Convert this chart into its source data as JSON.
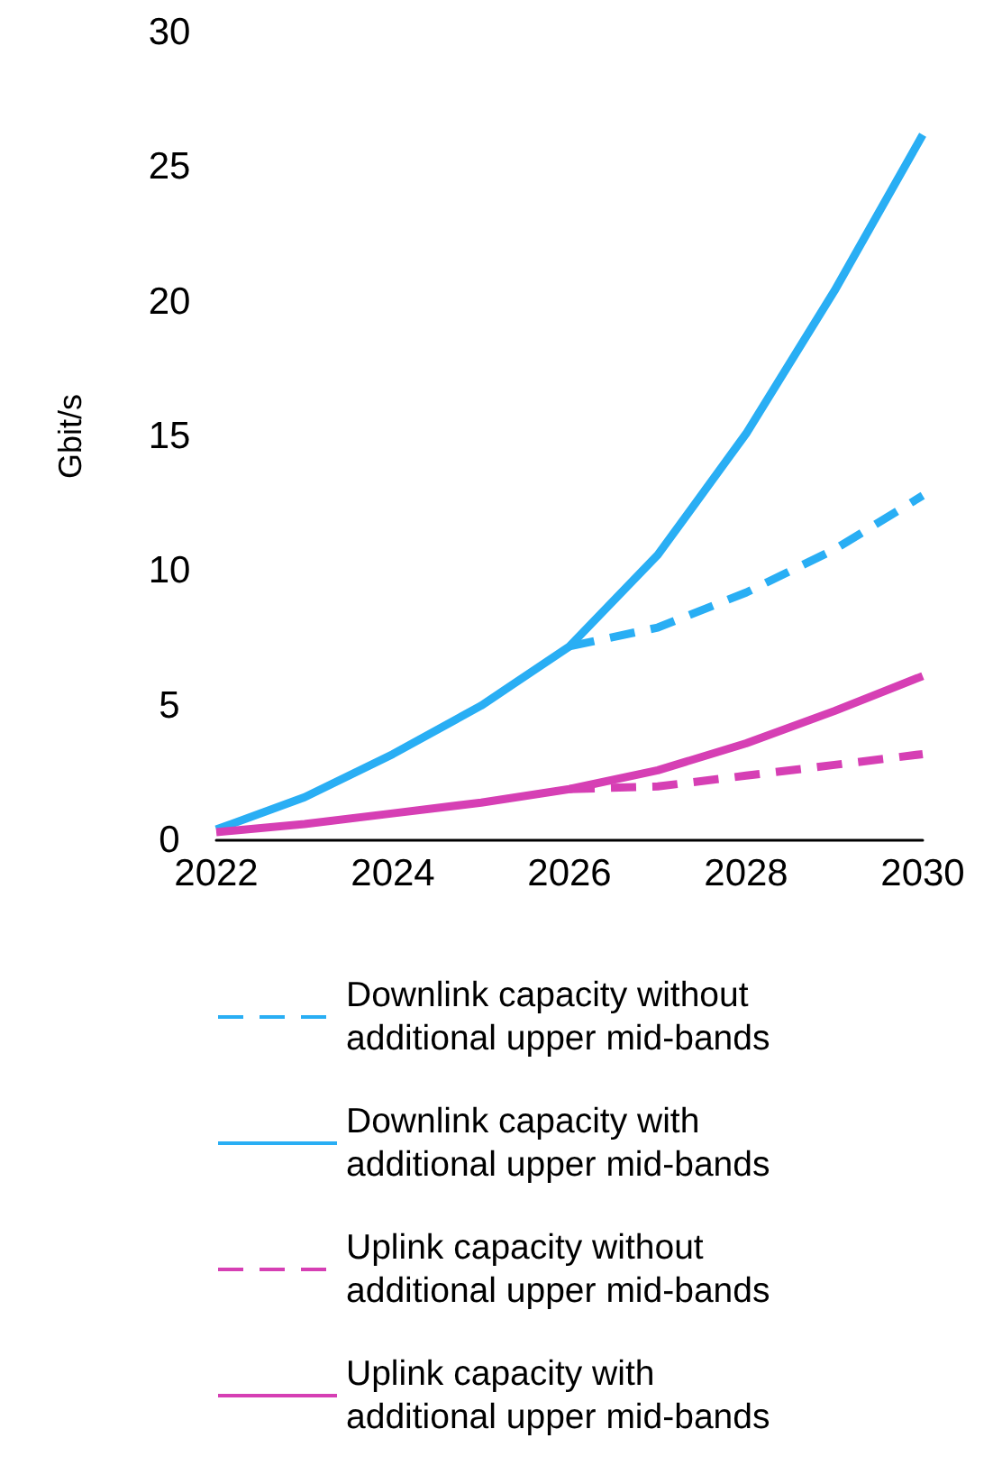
{
  "chart_data": {
    "type": "line",
    "ylabel": "Gbit/s",
    "x": [
      2022,
      2023,
      2024,
      2025,
      2026,
      2027,
      2028,
      2029,
      2030
    ],
    "xlim": [
      2022,
      2030
    ],
    "xticks": [
      2022,
      2024,
      2026,
      2028,
      2030
    ],
    "ylim": [
      0,
      30
    ],
    "yticks": [
      0,
      5,
      10,
      15,
      20,
      25,
      30
    ],
    "grid": false,
    "legend": "bottom",
    "marker": "none",
    "series": [
      {
        "name": "Downlink capacity without\nadditional upper mid-bands",
        "color": "#29aef4",
        "line_style": "dashed",
        "values": [
          null,
          null,
          null,
          null,
          7.2,
          7.9,
          9.2,
          10.8,
          12.8
        ]
      },
      {
        "name": "Downlink capacity with\nadditional upper mid-bands",
        "color": "#29aef4",
        "line_style": "solid",
        "values": [
          0.4,
          1.6,
          3.2,
          5.0,
          7.2,
          10.6,
          15.1,
          20.4,
          26.2
        ]
      },
      {
        "name": "Uplink capacity without\nadditional upper mid-bands",
        "color": "#d63fb4",
        "line_style": "dashed",
        "values": [
          null,
          null,
          null,
          null,
          1.9,
          2.0,
          2.4,
          2.8,
          3.2
        ]
      },
      {
        "name": "Uplink capacity with\nadditional upper mid-bands",
        "color": "#d63fb4",
        "line_style": "solid",
        "values": [
          0.3,
          0.6,
          1.0,
          1.4,
          1.9,
          2.6,
          3.6,
          4.8,
          6.1
        ]
      }
    ]
  }
}
